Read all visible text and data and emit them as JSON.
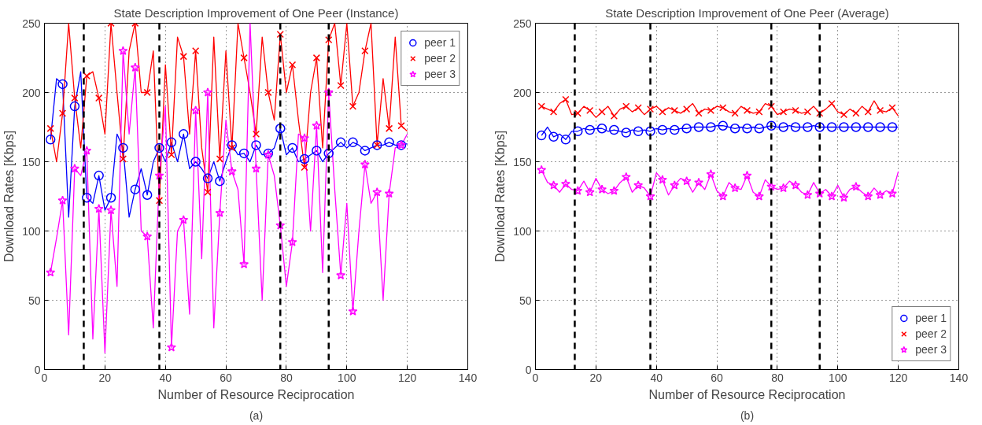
{
  "chart_data": [
    {
      "type": "line",
      "title": "State Description Improvement of One Peer (Instance)",
      "xlabel": "Number of Resource Reciprocation",
      "ylabel": "Download Rates [Kbps]",
      "annotations": [
        "(a)"
      ],
      "xlim": [
        0,
        140
      ],
      "ylim": [
        0,
        250
      ],
      "xticks": [
        0,
        20,
        40,
        60,
        80,
        100,
        120,
        140
      ],
      "yticks": [
        0,
        50,
        100,
        150,
        200,
        250
      ],
      "grid": true,
      "legend": "top right",
      "ref_lines": [
        {
          "axis": "x",
          "value": 13,
          "color": "#000000",
          "line_style": "dashed"
        },
        {
          "axis": "x",
          "value": 38,
          "color": "#000000",
          "line_style": "dashed"
        },
        {
          "axis": "x",
          "value": 78,
          "color": "#000000",
          "line_style": "dashed"
        },
        {
          "axis": "x",
          "value": 94,
          "color": "#000000",
          "line_style": "dashed"
        }
      ],
      "series": [
        {
          "type": "line",
          "color": "#0000ff",
          "x": [
            2,
            4,
            6,
            8,
            10,
            12,
            14,
            16,
            18,
            20,
            22,
            24,
            26,
            28,
            30,
            32,
            34,
            36,
            38,
            40,
            42,
            44,
            46,
            48,
            50,
            52,
            54,
            56,
            58,
            60,
            62,
            64,
            66,
            68,
            70,
            72,
            74,
            76,
            78,
            80,
            82,
            84,
            86,
            88,
            90,
            92,
            94,
            96,
            98,
            100,
            102,
            104,
            106,
            108,
            110,
            112,
            114,
            116,
            118,
            120
          ],
          "values": [
            166,
            210,
            206,
            110,
            190,
            215,
            124,
            120,
            140,
            115,
            124,
            170,
            160,
            110,
            130,
            145,
            126,
            150,
            160,
            150,
            164,
            150,
            170,
            145,
            150,
            145,
            138,
            150,
            136,
            150,
            162,
            155,
            156,
            150,
            162,
            155,
            156,
            160,
            174,
            155,
            160,
            150,
            152,
            155,
            158,
            150,
            156,
            160,
            164,
            160,
            164,
            162,
            158,
            160,
            162,
            162,
            164,
            162,
            162,
            163
          ]
        },
        {
          "type": "line",
          "color": "#ff0000",
          "x": [
            2,
            4,
            6,
            8,
            10,
            12,
            14,
            16,
            18,
            20,
            22,
            24,
            26,
            28,
            30,
            32,
            34,
            36,
            38,
            40,
            42,
            44,
            46,
            48,
            50,
            52,
            54,
            56,
            58,
            60,
            62,
            64,
            66,
            68,
            70,
            72,
            74,
            76,
            78,
            80,
            82,
            84,
            86,
            88,
            90,
            92,
            94,
            96,
            98,
            100,
            102,
            104,
            106,
            108,
            110,
            112,
            114,
            116,
            118,
            120
          ],
          "values": [
            174,
            150,
            185,
            250,
            196,
            160,
            212,
            215,
            196,
            170,
            250,
            200,
            152,
            230,
            250,
            200,
            200,
            230,
            122,
            220,
            155,
            240,
            226,
            170,
            230,
            160,
            128,
            240,
            152,
            230,
            160,
            250,
            225,
            200,
            170,
            240,
            200,
            180,
            242,
            200,
            220,
            180,
            146,
            200,
            225,
            160,
            238,
            250,
            205,
            250,
            190,
            200,
            230,
            250,
            162,
            210,
            174,
            240,
            176,
            172
          ]
        },
        {
          "type": "line",
          "color": "#ff00ff",
          "x": [
            2,
            4,
            6,
            8,
            10,
            12,
            14,
            16,
            18,
            20,
            22,
            24,
            26,
            28,
            30,
            32,
            34,
            36,
            38,
            40,
            42,
            44,
            46,
            48,
            50,
            52,
            54,
            56,
            58,
            60,
            62,
            64,
            66,
            68,
            70,
            72,
            74,
            76,
            78,
            80,
            82,
            84,
            86,
            88,
            90,
            92,
            94,
            96,
            98,
            100,
            102,
            104,
            106,
            108,
            110,
            112,
            114,
            116,
            118,
            120
          ],
          "values": [
            70,
            95,
            122,
            25,
            145,
            140,
            158,
            22,
            116,
            12,
            115,
            60,
            230,
            170,
            218,
            100,
            96,
            30,
            140,
            190,
            16,
            100,
            108,
            40,
            187,
            80,
            200,
            30,
            113,
            180,
            143,
            130,
            76,
            250,
            145,
            50,
            155,
            140,
            104,
            60,
            92,
            170,
            167,
            100,
            176,
            70,
            200,
            130,
            68,
            120,
            42,
            100,
            148,
            120,
            128,
            50,
            127,
            160,
            162,
            170
          ]
        },
        {
          "type": "scatter",
          "name": "peer 1",
          "marker": "circle",
          "color": "#0000ff",
          "x": [
            2,
            6,
            10,
            14,
            18,
            22,
            26,
            30,
            34,
            38,
            42,
            46,
            50,
            54,
            58,
            62,
            66,
            70,
            74,
            78,
            82,
            86,
            90,
            94,
            98,
            102,
            106,
            110,
            114,
            118
          ],
          "values": [
            166,
            206,
            190,
            124,
            140,
            124,
            160,
            130,
            126,
            160,
            164,
            170,
            150,
            138,
            136,
            162,
            156,
            162,
            156,
            174,
            160,
            152,
            158,
            156,
            164,
            164,
            158,
            162,
            164,
            162
          ]
        },
        {
          "type": "scatter",
          "name": "peer 2",
          "marker": "cross",
          "color": "#ff0000",
          "x": [
            2,
            6,
            10,
            14,
            18,
            22,
            26,
            30,
            34,
            38,
            42,
            46,
            50,
            54,
            58,
            62,
            66,
            70,
            74,
            78,
            82,
            86,
            90,
            94,
            98,
            102,
            106,
            110,
            114,
            118
          ],
          "values": [
            174,
            185,
            196,
            212,
            196,
            250,
            152,
            250,
            200,
            122,
            155,
            226,
            230,
            128,
            152,
            160,
            225,
            170,
            200,
            242,
            220,
            146,
            225,
            238,
            205,
            190,
            230,
            162,
            174,
            176
          ]
        },
        {
          "type": "scatter",
          "name": "peer 3",
          "marker": "star",
          "color": "#ff00ff",
          "x": [
            2,
            6,
            10,
            14,
            18,
            22,
            26,
            30,
            34,
            38,
            42,
            46,
            50,
            54,
            58,
            62,
            66,
            70,
            74,
            78,
            82,
            86,
            90,
            94,
            98,
            102,
            106,
            110,
            114,
            118
          ],
          "values": [
            70,
            122,
            145,
            158,
            116,
            115,
            230,
            218,
            96,
            140,
            16,
            108,
            187,
            200,
            113,
            143,
            76,
            145,
            155,
            104,
            92,
            167,
            176,
            200,
            68,
            42,
            148,
            128,
            127,
            162
          ]
        }
      ]
    },
    {
      "type": "line",
      "title": "State Description Improvement of One Peer (Average)",
      "xlabel": "Number of Resource Reciprocation",
      "ylabel": "Download Rates [Kbps]",
      "annotations": [
        "(b)"
      ],
      "xlim": [
        0,
        140
      ],
      "ylim": [
        0,
        250
      ],
      "xticks": [
        0,
        20,
        40,
        60,
        80,
        100,
        120,
        140
      ],
      "yticks": [
        0,
        50,
        100,
        150,
        200,
        250
      ],
      "grid": true,
      "legend": "bottom right",
      "ref_lines": [
        {
          "axis": "x",
          "value": 13,
          "color": "#000000",
          "line_style": "dashed"
        },
        {
          "axis": "x",
          "value": 38,
          "color": "#000000",
          "line_style": "dashed"
        },
        {
          "axis": "x",
          "value": 78,
          "color": "#000000",
          "line_style": "dashed"
        },
        {
          "axis": "x",
          "value": 94,
          "color": "#000000",
          "line_style": "dashed"
        }
      ],
      "series": [
        {
          "type": "line",
          "color": "#0000ff",
          "x": [
            2,
            4,
            6,
            8,
            10,
            12,
            14,
            16,
            18,
            20,
            22,
            24,
            26,
            28,
            30,
            32,
            34,
            36,
            38,
            40,
            42,
            44,
            46,
            48,
            50,
            52,
            54,
            56,
            58,
            60,
            62,
            64,
            66,
            68,
            70,
            72,
            74,
            76,
            78,
            80,
            82,
            84,
            86,
            88,
            90,
            92,
            94,
            96,
            98,
            100,
            102,
            104,
            106,
            108,
            110,
            112,
            114,
            116,
            118,
            120
          ],
          "values": [
            169,
            175,
            168,
            170,
            166,
            172,
            172,
            174,
            173,
            174,
            174,
            172,
            173,
            172,
            171,
            173,
            172,
            173,
            172,
            174,
            173,
            174,
            173,
            174,
            174,
            175,
            175,
            175,
            175,
            176,
            176,
            175,
            174,
            175,
            174,
            175,
            174,
            175,
            176,
            175,
            175,
            176,
            175,
            175,
            175,
            176,
            175,
            175,
            175,
            175,
            175,
            175,
            175,
            175,
            175,
            175,
            175,
            175,
            175,
            175
          ]
        },
        {
          "type": "line",
          "color": "#ff0000",
          "x": [
            2,
            4,
            6,
            8,
            10,
            12,
            14,
            16,
            18,
            20,
            22,
            24,
            26,
            28,
            30,
            32,
            34,
            36,
            38,
            40,
            42,
            44,
            46,
            48,
            50,
            52,
            54,
            56,
            58,
            60,
            62,
            64,
            66,
            68,
            70,
            72,
            74,
            76,
            78,
            80,
            82,
            84,
            86,
            88,
            90,
            92,
            94,
            96,
            98,
            100,
            102,
            104,
            106,
            108,
            110,
            112,
            114,
            116,
            118,
            120
          ],
          "values": [
            190,
            188,
            186,
            192,
            195,
            184,
            185,
            190,
            187,
            182,
            186,
            190,
            183,
            188,
            190,
            186,
            189,
            184,
            188,
            190,
            186,
            189,
            187,
            185,
            188,
            192,
            185,
            188,
            187,
            190,
            189,
            186,
            185,
            190,
            187,
            185,
            186,
            192,
            190,
            184,
            186,
            188,
            187,
            185,
            186,
            190,
            185,
            188,
            192,
            186,
            184,
            188,
            185,
            190,
            186,
            194,
            187,
            186,
            189,
            183
          ]
        },
        {
          "type": "line",
          "color": "#ff00ff",
          "x": [
            2,
            4,
            6,
            8,
            10,
            12,
            14,
            16,
            18,
            20,
            22,
            24,
            26,
            28,
            30,
            32,
            34,
            36,
            38,
            40,
            42,
            44,
            46,
            48,
            50,
            52,
            54,
            56,
            58,
            60,
            62,
            64,
            66,
            68,
            70,
            72,
            74,
            76,
            78,
            80,
            82,
            84,
            86,
            88,
            90,
            92,
            94,
            96,
            98,
            100,
            102,
            104,
            106,
            108,
            110,
            112,
            114,
            116,
            118,
            120
          ],
          "values": [
            144,
            135,
            133,
            128,
            134,
            130,
            129,
            136,
            128,
            138,
            130,
            127,
            129,
            135,
            139,
            128,
            133,
            131,
            125,
            142,
            137,
            126,
            133,
            138,
            136,
            128,
            135,
            130,
            141,
            129,
            125,
            135,
            131,
            130,
            140,
            128,
            125,
            137,
            132,
            130,
            131,
            136,
            133,
            128,
            126,
            135,
            127,
            130,
            125,
            133,
            124,
            130,
            132,
            128,
            125,
            131,
            126,
            129,
            127,
            143
          ]
        },
        {
          "type": "scatter",
          "name": "peer 1",
          "marker": "circle",
          "color": "#0000ff",
          "x": [
            2,
            6,
            10,
            14,
            18,
            22,
            26,
            30,
            34,
            38,
            42,
            46,
            50,
            54,
            58,
            62,
            66,
            70,
            74,
            78,
            82,
            86,
            90,
            94,
            98,
            102,
            106,
            110,
            114,
            118
          ],
          "values": [
            169,
            168,
            166,
            172,
            173,
            174,
            173,
            171,
            172,
            172,
            173,
            173,
            174,
            175,
            175,
            176,
            174,
            174,
            174,
            176,
            175,
            175,
            175,
            175,
            175,
            175,
            175,
            175,
            175,
            175
          ]
        },
        {
          "type": "scatter",
          "name": "peer 2",
          "marker": "cross",
          "color": "#ff0000",
          "x": [
            2,
            6,
            10,
            14,
            18,
            22,
            26,
            30,
            34,
            38,
            42,
            46,
            50,
            54,
            58,
            62,
            66,
            70,
            74,
            78,
            82,
            86,
            90,
            94,
            98,
            102,
            106,
            110,
            114,
            118
          ],
          "values": [
            190,
            186,
            195,
            185,
            187,
            186,
            183,
            190,
            189,
            188,
            186,
            187,
            188,
            185,
            187,
            189,
            185,
            187,
            186,
            190,
            186,
            187,
            186,
            185,
            192,
            184,
            185,
            186,
            187,
            189
          ]
        },
        {
          "type": "scatter",
          "name": "peer 3",
          "marker": "star",
          "color": "#ff00ff",
          "x": [
            2,
            6,
            10,
            14,
            18,
            22,
            26,
            30,
            34,
            38,
            42,
            46,
            50,
            54,
            58,
            62,
            66,
            70,
            74,
            78,
            82,
            86,
            90,
            94,
            98,
            102,
            106,
            110,
            114,
            118
          ],
          "values": [
            144,
            133,
            134,
            129,
            128,
            130,
            129,
            139,
            133,
            125,
            137,
            133,
            136,
            135,
            141,
            125,
            131,
            140,
            125,
            132,
            131,
            133,
            126,
            127,
            125,
            124,
            132,
            125,
            126,
            127
          ]
        }
      ]
    }
  ]
}
